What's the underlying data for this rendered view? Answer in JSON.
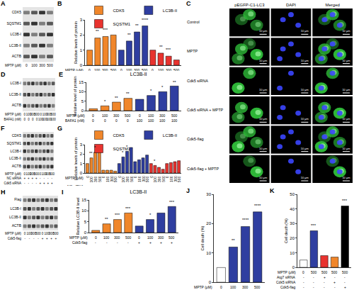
{
  "blots": [
    {
      "panel": "A",
      "bands": [
        "CDK5",
        "SQSTM1",
        "LC3B-I",
        "LC3B-II",
        "ACTB"
      ],
      "conditions": [
        {
          "label": "MPTP (μM)",
          "values": [
            "0",
            "100",
            "300",
            "500"
          ]
        }
      ]
    },
    {
      "panel": "D",
      "bands": [
        "LC3B-I",
        "LC3B-II",
        "ACTB"
      ],
      "conditions": [
        {
          "label": "MPTP (μM)",
          "values": [
            "0",
            "100",
            "300",
            "500",
            "0",
            "100",
            "300",
            "500"
          ]
        },
        {
          "label": "BAFA1 (nM)",
          "values": [
            "0",
            "0",
            "0",
            "0",
            "100",
            "100",
            "100",
            "100"
          ]
        }
      ]
    },
    {
      "panel": "F",
      "bands": [
        "CDK5",
        "SQSTM1",
        "LC3B-I",
        "LC3B-II",
        "ACTB"
      ],
      "conditions": [
        {
          "label": "MPTP (μM)",
          "values": [
            "0",
            "100",
            "300",
            "500",
            "0",
            "100",
            "300",
            "500"
          ]
        },
        {
          "label": "NC siRNA",
          "values": [
            "+",
            "+",
            "+",
            "+",
            "-",
            "-",
            "-",
            "-"
          ]
        },
        {
          "label": "Cdk5 siRNA",
          "values": [
            "-",
            "-",
            "-",
            "-",
            "+",
            "+",
            "+",
            "+"
          ]
        }
      ]
    },
    {
      "panel": "H",
      "bands": [
        "Flag",
        "LC3B-I",
        "LC3B-II",
        "ACTB"
      ],
      "conditions": [
        {
          "label": "MPTP (μM)",
          "values": [
            "0",
            "100",
            "300",
            "500",
            "0",
            "100",
            "300",
            "500"
          ]
        },
        {
          "label": "Cdk5-flag",
          "values": [
            "-",
            "-",
            "-",
            "-",
            "+",
            "+",
            "+",
            "+"
          ]
        }
      ]
    }
  ],
  "micrograph": {
    "panel": "C",
    "columns": [
      "pEGFP-C1-LC3",
      "DAPI",
      "Merged"
    ],
    "rows": [
      "Control",
      "MPTP",
      "Cdk5 siRNA",
      "Cdk5 siRNA + MPTP",
      "Cdk5-flag",
      "Cdk5-flag + MPTP"
    ],
    "scale_bar": "10 μm"
  },
  "chart_data": [
    {
      "panel": "B",
      "type": "bar",
      "categories": [
        null,
        null,
        null,
        null,
        null,
        null,
        null,
        null,
        null,
        null,
        null,
        null
      ],
      "series": [
        {
          "name": "CDK5",
          "color": "#f0862a",
          "values": [
            1,
            1.8,
            1.9,
            2.0,
            null,
            null,
            null,
            null,
            null,
            null,
            null,
            null
          ]
        },
        {
          "name": "LC3B-II",
          "color": "#2f3ea0",
          "values": [
            null,
            null,
            null,
            null,
            1,
            1.6,
            2.2,
            2.6,
            null,
            null,
            null,
            null
          ]
        },
        {
          "name": "SQSTM1",
          "color": "#e8332f",
          "values": [
            null,
            null,
            null,
            null,
            null,
            null,
            null,
            null,
            1,
            0.8,
            0.6,
            0.35
          ]
        }
      ],
      "ylabel": "Relative levels of protein",
      "ylim": [
        0,
        3
      ],
      "yticks": [
        0,
        1,
        2,
        3
      ],
      "legend": "top",
      "tick_labels": "y",
      "x_rows": [
        {
          "label": "MPTP (μM)",
          "values": [
            "0",
            "100",
            "300",
            "500",
            "0",
            "100",
            "300",
            "500",
            "0",
            "100",
            "300",
            "500"
          ]
        }
      ],
      "annotations": [
        {
          "x": 1,
          "y": 2.0,
          "text": "**"
        },
        {
          "x": 2,
          "y": 2.1,
          "text": "***"
        },
        {
          "x": 5,
          "y": 1.8,
          "text": "**"
        },
        {
          "x": 6,
          "y": 2.4,
          "text": "**"
        },
        {
          "x": 7,
          "y": 2.75,
          "text": "****"
        },
        {
          "x": 9,
          "y": 1.0,
          "text": "**"
        },
        {
          "x": 10,
          "y": 0.8,
          "text": "***"
        }
      ]
    },
    {
      "panel": "E",
      "type": "bar",
      "title": "LC3B-II",
      "categories": [
        null,
        null,
        null,
        null,
        null,
        null,
        null,
        null
      ],
      "values": [
        1,
        2.5,
        4.5,
        6.5,
        6,
        8,
        10,
        13
      ],
      "colors": [
        "#f0862a",
        "#f0862a",
        "#f0862a",
        "#f0862a",
        "#2f3ea0",
        "#2f3ea0",
        "#2f3ea0",
        "#2f3ea0"
      ],
      "ylabel": "Relative level of protein",
      "ylim": [
        0,
        15
      ],
      "yticks": [
        0,
        5,
        10,
        15
      ],
      "tick_labels": "y",
      "x_rows": [
        {
          "label": "MPTP (μM)",
          "values": [
            "0",
            "100",
            "300",
            "500",
            "0",
            "100",
            "300",
            "500"
          ]
        },
        {
          "label": "BAFA1 (nM)",
          "values": [
            "0",
            "0",
            "0",
            "0",
            "100",
            "100",
            "100",
            "100"
          ]
        }
      ],
      "annotations": [
        {
          "x": 1,
          "y": 3,
          "text": "*"
        },
        {
          "x": 2,
          "y": 5,
          "text": "**"
        },
        {
          "x": 3,
          "y": 7,
          "text": "**"
        },
        {
          "x": 5,
          "y": 8.5,
          "text": "*"
        },
        {
          "x": 6,
          "y": 10.5,
          "text": "*"
        },
        {
          "x": 7,
          "y": 13.3,
          "text": "**"
        }
      ]
    },
    {
      "panel": "G",
      "type": "bar",
      "categories": [
        null,
        null,
        null,
        null,
        null,
        null,
        null,
        null,
        null,
        null,
        null,
        null,
        null,
        null,
        null,
        null,
        null,
        null,
        null,
        null,
        null,
        null,
        null,
        null
      ],
      "series": [
        {
          "name": "CDK5",
          "color": "#f0862a",
          "values": [
            1,
            1.6,
            2.2,
            2.6,
            0.3,
            0.3,
            0.3,
            0.2,
            null,
            null,
            null,
            null,
            null,
            null,
            null,
            null,
            null,
            null,
            null,
            null,
            null,
            null,
            null,
            null
          ]
        },
        {
          "name": "LC3B-II",
          "color": "#2f3ea0",
          "values": [
            null,
            null,
            null,
            null,
            null,
            null,
            null,
            null,
            1,
            1.7,
            2.3,
            2.7,
            1.2,
            1.4,
            1.6,
            1.9,
            null,
            null,
            null,
            null,
            null,
            null,
            null,
            null
          ]
        },
        {
          "name": "SQSTM1",
          "color": "#e8332f",
          "values": [
            null,
            null,
            null,
            null,
            null,
            null,
            null,
            null,
            null,
            null,
            null,
            null,
            null,
            null,
            null,
            null,
            1,
            0.8,
            0.6,
            0.4,
            1.0,
            1.1,
            1.2,
            1.3
          ]
        }
      ],
      "ylabel": "Relative levels of protein",
      "ylim": [
        0,
        3
      ],
      "yticks": [
        0,
        1,
        2,
        3
      ],
      "legend": "top",
      "tick_labels": "y",
      "x_rows": [
        {
          "label": "MPTP (μM)",
          "values": [
            "0",
            "100",
            "300",
            "500",
            "0",
            "100",
            "300",
            "500",
            "0",
            "100",
            "300",
            "500",
            "0",
            "100",
            "300",
            "500",
            "0",
            "100",
            "300",
            "500",
            "0",
            "100",
            "300",
            "500"
          ]
        },
        {
          "label": "NC siRNA",
          "values": [
            "+",
            "+",
            "+",
            "+",
            "-",
            "-",
            "-",
            "-",
            "+",
            "+",
            "+",
            "+",
            "-",
            "-",
            "-",
            "-",
            "+",
            "+",
            "+",
            "+",
            "-",
            "-",
            "-",
            "-"
          ]
        },
        {
          "label": "Cdk5 siRNA",
          "values": [
            "-",
            "-",
            "-",
            "-",
            "+",
            "+",
            "+",
            "+",
            "-",
            "-",
            "-",
            "-",
            "+",
            "+",
            "+",
            "+",
            "-",
            "-",
            "-",
            "-",
            "+",
            "+",
            "+",
            "+"
          ]
        }
      ],
      "annotations": [
        {
          "x": 1,
          "y": 1.7,
          "text": "**"
        },
        {
          "x": 2,
          "y": 2.3,
          "text": "*"
        },
        {
          "x": 9,
          "y": 1.8,
          "text": "*"
        },
        {
          "x": 10,
          "y": 2.4,
          "text": "*"
        },
        {
          "x": 17,
          "y": 0.9,
          "text": "*"
        }
      ]
    },
    {
      "panel": "I",
      "type": "bar",
      "title": "LC3B-II",
      "categories": [
        null,
        null,
        null,
        null,
        null,
        null,
        null,
        null
      ],
      "values": [
        1,
        4,
        6,
        9,
        3,
        6,
        9,
        12
      ],
      "colors": [
        "#f0862a",
        "#f0862a",
        "#f0862a",
        "#f0862a",
        "#2f3ea0",
        "#2f3ea0",
        "#2f3ea0",
        "#2f3ea0"
      ],
      "ylabel": "Relative LC3B-II level",
      "ylim": [
        0,
        15
      ],
      "yticks": [
        0,
        5,
        10,
        15
      ],
      "tick_labels": "y",
      "x_rows": [
        {
          "label": "MPTP (μM)",
          "values": [
            "0",
            "100",
            "300",
            "500",
            "0",
            "100",
            "300",
            "500"
          ]
        },
        {
          "label": "Cdk5-flag",
          "values": [
            "-",
            "-",
            "-",
            "-",
            "+",
            "+",
            "+",
            "+"
          ]
        }
      ],
      "annotations": [
        {
          "x": 1,
          "y": 4.5,
          "text": "**"
        },
        {
          "x": 2,
          "y": 6.5,
          "text": "***"
        },
        {
          "x": 3,
          "y": 9.5,
          "text": "***"
        },
        {
          "x": 5,
          "y": 6.5,
          "text": "*"
        },
        {
          "x": 7,
          "y": 12.5,
          "text": "***"
        }
      ]
    },
    {
      "panel": "J",
      "type": "bar",
      "categories": [
        null,
        null,
        null,
        null
      ],
      "values": [
        5,
        12,
        19,
        24
      ],
      "colors": [
        "#ffffff",
        "#2f3ea0",
        "#2f3ea0",
        "#2f3ea0"
      ],
      "ylabel": "Cell death (%)",
      "ylim": [
        0,
        30
      ],
      "yticks": [
        0,
        10,
        20,
        30
      ],
      "tick_labels": "y",
      "x_rows": [
        {
          "label": "MPTP (μM)",
          "values": [
            "0",
            "100",
            "300",
            "500"
          ]
        }
      ],
      "annotations": [
        {
          "x": 1,
          "y": 13,
          "text": "**"
        },
        {
          "x": 2,
          "y": 20,
          "text": "****"
        },
        {
          "x": 3,
          "y": 25,
          "text": "****"
        }
      ]
    },
    {
      "panel": "K",
      "type": "bar",
      "categories": [
        null,
        null,
        null,
        null,
        null
      ],
      "values": [
        5,
        25,
        8,
        7,
        42
      ],
      "colors": [
        "#ffffff",
        "#2f3ea0",
        "#e8332f",
        "#f0862a",
        "#000000"
      ],
      "ylabel": "Cell death (%)",
      "ylim": [
        0,
        50
      ],
      "yticks": [
        0,
        10,
        20,
        30,
        40,
        50
      ],
      "tick_labels": "y",
      "x_rows": [
        {
          "label": "MPTP (μM)",
          "values": [
            "0",
            "500",
            "500",
            "500",
            "500"
          ]
        },
        {
          "label": "Atg7 siRNA",
          "values": [
            "-",
            "-",
            "+",
            "-",
            "-"
          ]
        },
        {
          "label": "Cdk5 siRNA",
          "values": [
            "-",
            "-",
            "-",
            "+",
            "-"
          ]
        },
        {
          "label": "Cdk5-flag",
          "values": [
            "-",
            "-",
            "-",
            "-",
            "+"
          ]
        }
      ],
      "annotations": [
        {
          "x": 1,
          "y": 26,
          "text": "***"
        },
        {
          "x": 4,
          "y": 43,
          "text": "***"
        }
      ]
    }
  ]
}
